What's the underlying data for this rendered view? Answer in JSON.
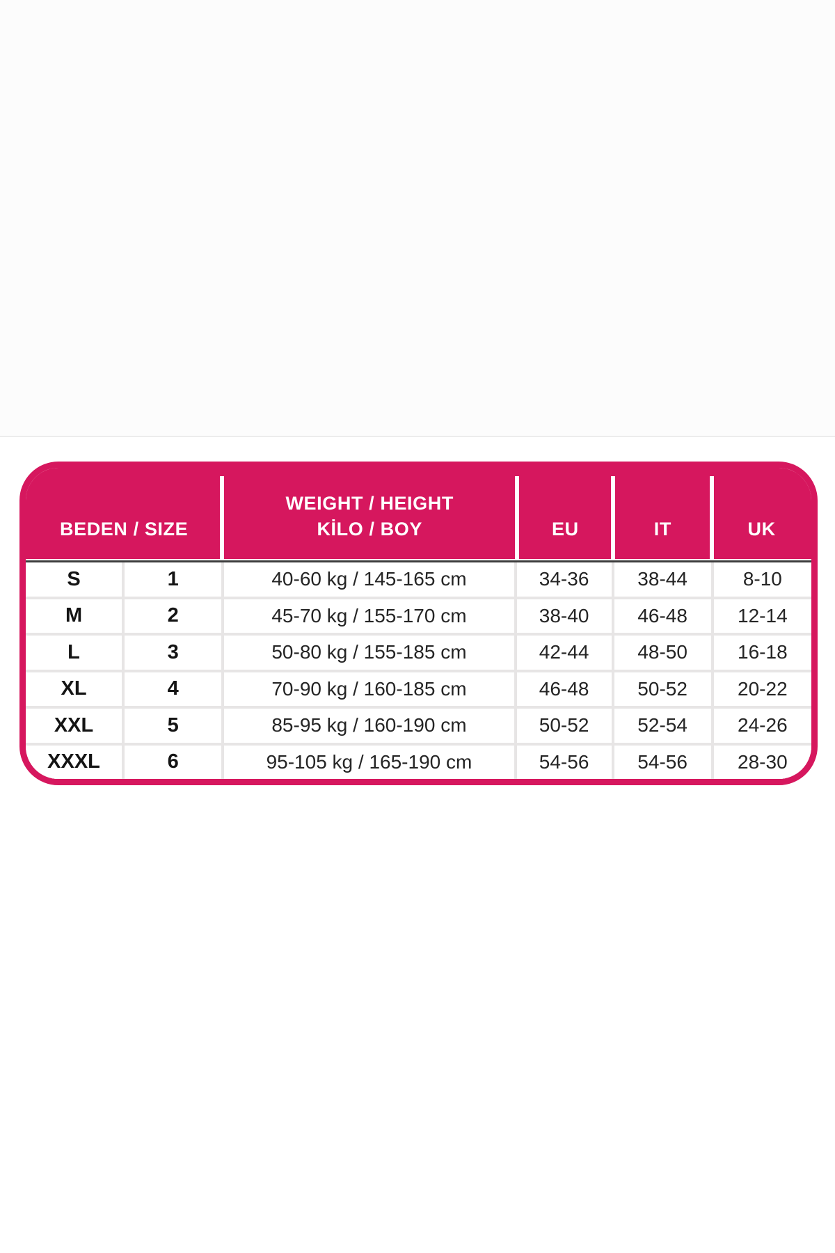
{
  "accent_color": "#d6175e",
  "header": {
    "size_group": "BEDEN / SIZE",
    "weight_line1": "WEIGHT / HEIGHT",
    "weight_line2": "KİLO / BOY",
    "eu": "EU",
    "it": "IT",
    "uk": "UK"
  },
  "chart_data": {
    "type": "table",
    "columns": [
      "BEDEN / SIZE",
      "WEIGHT / HEIGHT KİLO / BOY",
      "EU",
      "IT",
      "UK"
    ],
    "column_spans": [
      2,
      1,
      1,
      1,
      1
    ],
    "rows": [
      [
        "S",
        "1",
        "40-60 kg / 145-165 cm",
        "34-36",
        "38-44",
        "8-10"
      ],
      [
        "M",
        "2",
        "45-70 kg / 155-170 cm",
        "38-40",
        "46-48",
        "12-14"
      ],
      [
        "L",
        "3",
        "50-80 kg / 155-185 cm",
        "42-44",
        "48-50",
        "16-18"
      ],
      [
        "XL",
        "4",
        "70-90 kg / 160-185 cm",
        "46-48",
        "50-52",
        "20-22"
      ],
      [
        "XXL",
        "5",
        "85-95 kg / 160-190 cm",
        "50-52",
        "52-54",
        "24-26"
      ],
      [
        "XXXL",
        "6",
        "95-105 kg / 165-190 cm",
        "54-56",
        "54-56",
        "28-30"
      ]
    ]
  }
}
